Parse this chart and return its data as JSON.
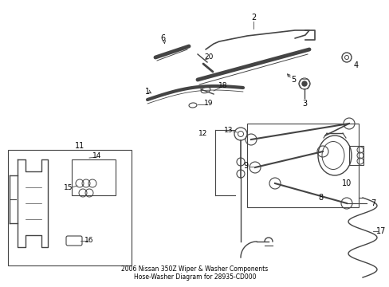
{
  "title": "2006 Nissan 350Z Wiper & Washer Components\nHose-Washer Diagram for 28935-CD000",
  "background_color": "#ffffff",
  "line_color": "#444444",
  "text_color": "#000000",
  "figsize": [
    4.89,
    3.6
  ],
  "dpi": 100
}
